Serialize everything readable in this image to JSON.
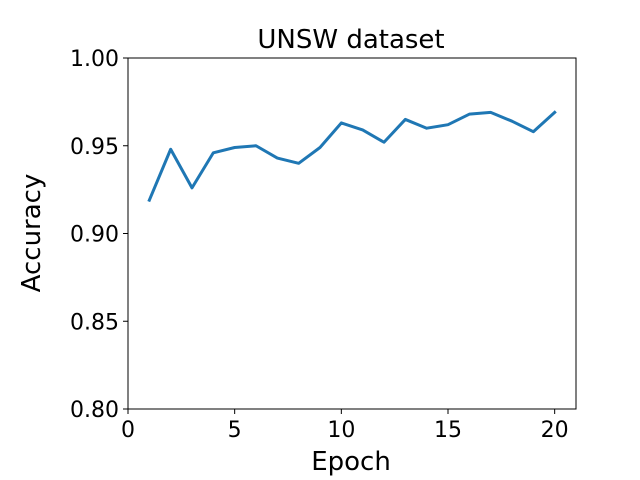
{
  "chart_data": {
    "type": "line",
    "title": "UNSW dataset",
    "xlabel": "Epoch",
    "ylabel": "Accuracy",
    "xlim": [
      0,
      21
    ],
    "ylim": [
      0.8,
      1.0
    ],
    "xticks": [
      0,
      5,
      10,
      15,
      20
    ],
    "xtick_labels": [
      "0",
      "5",
      "10",
      "15",
      "20"
    ],
    "yticks": [
      0.8,
      0.85,
      0.9,
      0.95,
      1.0
    ],
    "ytick_labels": [
      "0.80",
      "0.85",
      "0.90",
      "0.95",
      "1.00"
    ],
    "grid": false,
    "series": [
      {
        "color": "#1f77b4",
        "x": [
          1,
          2,
          3,
          4,
          5,
          6,
          7,
          8,
          9,
          10,
          11,
          12,
          13,
          14,
          15,
          16,
          17,
          18,
          19,
          20
        ],
        "y": [
          0.919,
          0.948,
          0.926,
          0.946,
          0.949,
          0.95,
          0.943,
          0.94,
          0.949,
          0.963,
          0.959,
          0.952,
          0.965,
          0.96,
          0.962,
          0.968,
          0.969,
          0.964,
          0.958,
          0.969
        ]
      }
    ]
  }
}
